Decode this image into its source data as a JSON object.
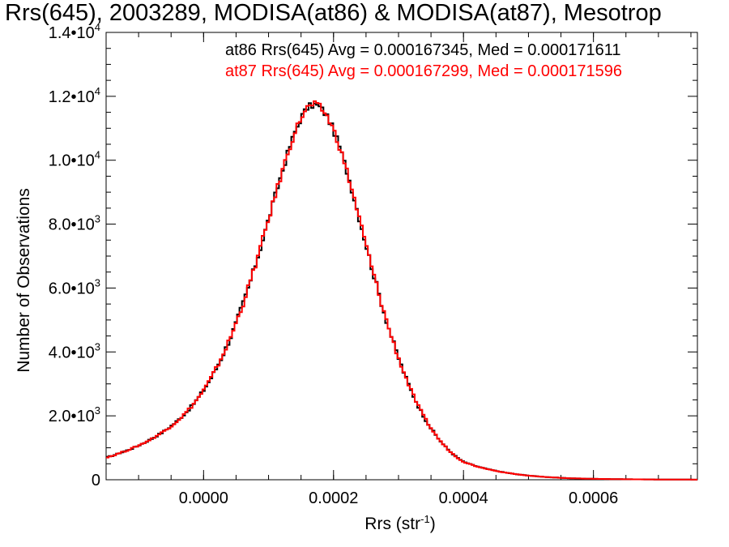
{
  "chart_data": {
    "type": "histogram",
    "title": "Rrs(645), 2003289, MODISA(at86) & MODISA(at87), Mesotrop",
    "xlabel": "Rrs (str",
    "xlabel_sup": "-1",
    "xlabel_close": ")",
    "ylabel": "Number of Observations",
    "xlim": [
      -0.00015,
      0.00076
    ],
    "ylim": [
      0,
      14000
    ],
    "x_ticks": [
      0.0,
      0.0002,
      0.0004,
      0.0006
    ],
    "x_tick_labels": [
      "0.0000",
      "0.0002",
      "0.0004",
      "0.0006"
    ],
    "y_ticks": [
      0,
      2000,
      4000,
      6000,
      8000,
      10000,
      12000,
      14000
    ],
    "y_tick_labels": [
      "0",
      "2.0•10",
      "4.0•10",
      "6.0•10",
      "8.0•10",
      "1.0•10",
      "1.2•10",
      "1.4•10"
    ],
    "y_tick_exponents": [
      "",
      "3",
      "3",
      "3",
      "3",
      "4",
      "4",
      "4"
    ],
    "annotations": [
      {
        "text": "at86 Rrs(645) Avg = 0.000167345, Med = 0.000171611",
        "color": "#000000"
      },
      {
        "text": "at87 Rrs(645) Avg = 0.000167299, Med = 0.000171596",
        "color": "#ff0000"
      }
    ],
    "series": [
      {
        "name": "at86",
        "color": "#000000"
      },
      {
        "name": "at87",
        "color": "#ff0000"
      }
    ],
    "x": [
      -0.00015,
      -0.00014,
      -0.00013,
      -0.00012,
      -0.00011,
      -0.0001,
      -9e-05,
      -8e-05,
      -7e-05,
      -6e-05,
      -5e-05,
      -4e-05,
      -3e-05,
      -2e-05,
      -1e-05,
      0.0,
      1e-05,
      2e-05,
      3e-05,
      4e-05,
      5e-05,
      6e-05,
      7e-05,
      8e-05,
      9e-05,
      0.0001,
      0.00011,
      0.00012,
      0.00013,
      0.00014,
      0.00015,
      0.00016,
      0.00017,
      0.00018,
      0.00019,
      0.0002,
      0.00021,
      0.00022,
      0.00023,
      0.00024,
      0.00025,
      0.00026,
      0.00027,
      0.00028,
      0.00029,
      0.0003,
      0.00031,
      0.00032,
      0.00033,
      0.00034,
      0.00035,
      0.00036,
      0.00037,
      0.00038,
      0.00039,
      0.0004,
      0.00042,
      0.00044,
      0.00046,
      0.00048,
      0.0005,
      0.00052,
      0.00054,
      0.00056,
      0.00058,
      0.0006,
      0.00065,
      0.0007,
      0.00076
    ],
    "values": [
      700,
      750,
      830,
      900,
      980,
      1070,
      1170,
      1280,
      1400,
      1530,
      1680,
      1850,
      2040,
      2260,
      2510,
      2800,
      3130,
      3500,
      3920,
      4380,
      4900,
      5470,
      6080,
      6740,
      7430,
      8150,
      8870,
      9580,
      10250,
      10850,
      11330,
      11650,
      11750,
      11650,
      11380,
      10950,
      10380,
      9700,
      8950,
      8150,
      7350,
      6560,
      5800,
      5080,
      4420,
      3810,
      3260,
      2760,
      2320,
      1940,
      1610,
      1320,
      1080,
      870,
      700,
      560,
      420,
      320,
      240,
      175,
      130,
      95,
      70,
      50,
      38,
      28,
      15,
      8,
      3
    ]
  }
}
